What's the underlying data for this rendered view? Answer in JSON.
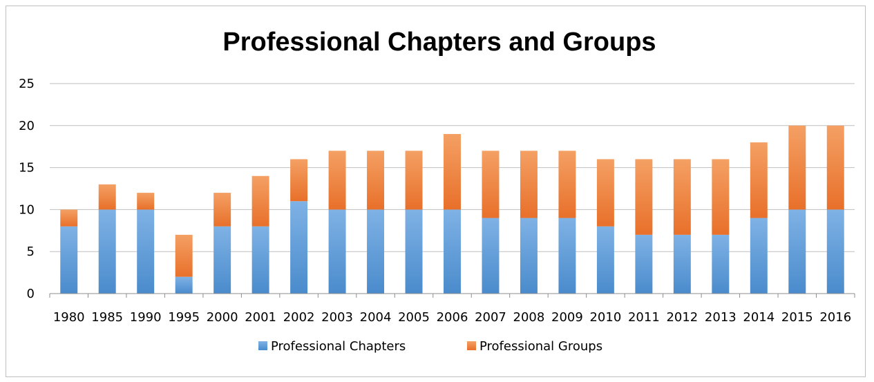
{
  "chart_data": {
    "type": "bar",
    "stacked": true,
    "title": "Professional Chapters and Groups",
    "categories": [
      "1980",
      "1985",
      "1990",
      "1995",
      "2000",
      "2001",
      "2002",
      "2003",
      "2004",
      "2005",
      "2006",
      "2007",
      "2008",
      "2009",
      "2010",
      "2011",
      "2012",
      "2013",
      "2014",
      "2015",
      "2016"
    ],
    "series": [
      {
        "name": "Professional Chapters",
        "color": "#5b9bd5",
        "values": [
          8,
          10,
          10,
          2,
          8,
          8,
          11,
          10,
          10,
          10,
          10,
          9,
          9,
          9,
          8,
          7,
          7,
          7,
          9,
          10,
          10
        ]
      },
      {
        "name": "Professional Groups",
        "color": "#ed7d31",
        "values": [
          2,
          3,
          2,
          5,
          4,
          6,
          5,
          7,
          7,
          7,
          9,
          8,
          8,
          8,
          8,
          9,
          9,
          9,
          9,
          10,
          10
        ]
      }
    ],
    "ylim": [
      0,
      25
    ],
    "yticks": [
      0,
      5,
      10,
      15,
      20,
      25
    ],
    "grid": true,
    "legend_position": "bottom"
  }
}
